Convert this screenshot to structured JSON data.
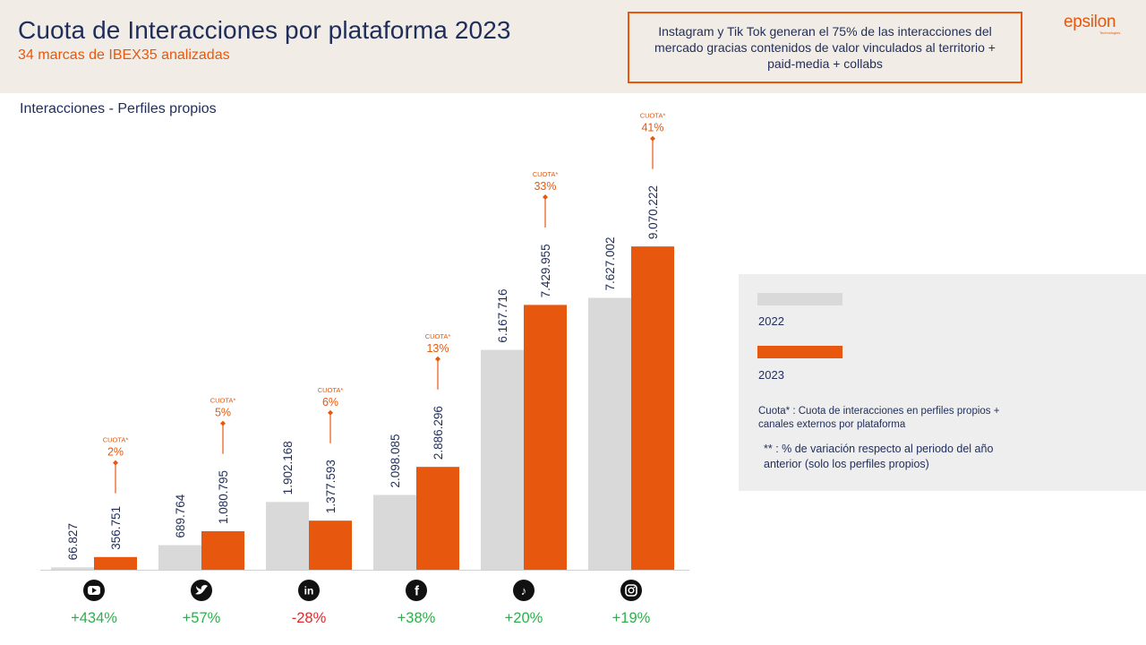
{
  "title": "Cuota de Interacciones por plataforma 2023",
  "subtitle": "34 marcas de IBEX35 analizadas",
  "callout": "Instagram y Tik Tok generan el 75% de las interacciones del mercado gracias contenidos de valor vinculados al territorio + paid-media + collabs",
  "logo": {
    "text": "epsilon",
    "sub": "Technologies"
  },
  "section_label": "Interacciones - Perfiles propios",
  "legend": {
    "items": [
      {
        "label": "2022",
        "color": "#d9d9d9"
      },
      {
        "label": "2023",
        "color": "#e8570e"
      }
    ],
    "note_cuota": "Cuota* : Cuota de interacciones en perfiles propios + canales externos por plataforma",
    "note_variation": "** : % de variación respecto al periodo del año anterior (solo los perfiles propios)"
  },
  "colors": {
    "accent": "#e8570e",
    "navy": "#1f2d5a",
    "grey_bar": "#d9d9d9",
    "positive": "#2db04b",
    "negative": "#e02a2a"
  },
  "chart_data": {
    "type": "bar",
    "categories": [
      "youtube",
      "twitter",
      "linkedin",
      "facebook",
      "tiktok",
      "instagram"
    ],
    "icons": [
      "youtube-icon",
      "twitter-icon",
      "linkedin-icon",
      "facebook-icon",
      "tiktok-icon",
      "instagram-icon"
    ],
    "series": [
      {
        "name": "2022",
        "color": "#d9d9d9",
        "values": [
          66827,
          689764,
          1902168,
          2098085,
          6167716,
          7627002
        ],
        "labels": [
          "66.827",
          "689.764",
          "1.902.168",
          "2.098.085",
          "6.167.716",
          "7.627.002"
        ]
      },
      {
        "name": "2023",
        "color": "#e8570e",
        "values": [
          356751,
          1080795,
          1377593,
          2886296,
          7429955,
          9070222
        ],
        "labels": [
          "356.751",
          "1.080.795",
          "1.377.593",
          "2.886.296",
          "7.429.955",
          "9.070.222"
        ]
      }
    ],
    "cuota_tag": "CUOTA*",
    "cuota": [
      "2%",
      "5%",
      "6%",
      "13%",
      "33%",
      "41%"
    ],
    "variation": [
      "+434%",
      "+57%",
      "-28%",
      "+38%",
      "+20%",
      "+19%"
    ],
    "ylim": [
      0,
      9500000
    ]
  }
}
